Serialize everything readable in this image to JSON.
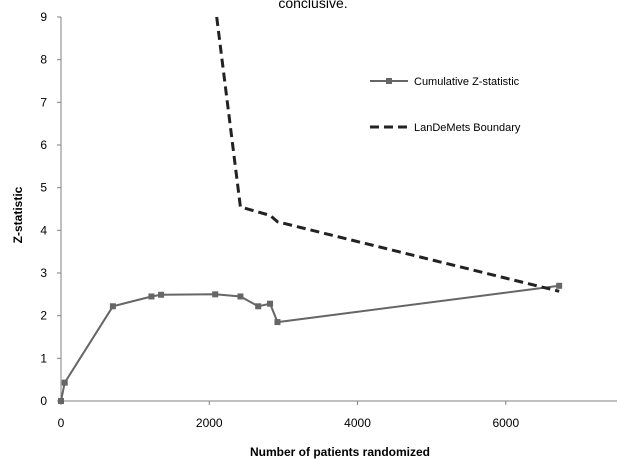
{
  "chart_data": {
    "type": "line",
    "title": "conclusive.",
    "xlabel": "Number of patients randomized",
    "ylabel": "Z-statistic",
    "xlim": [
      0,
      7500
    ],
    "ylim": [
      0,
      9
    ],
    "xticks": [
      "0",
      "2000",
      "4000",
      "6000"
    ],
    "xtick_values": [
      0,
      2000,
      4000,
      6000
    ],
    "yticks": [
      "0",
      "1",
      "2",
      "3",
      "4",
      "5",
      "6",
      "7",
      "8",
      "9"
    ],
    "ytick_values": [
      0,
      1,
      2,
      3,
      4,
      5,
      6,
      7,
      8,
      9
    ],
    "grid": false,
    "legend_position": "top-right",
    "series": [
      {
        "name": "Cumulative Z-statistic",
        "style": "solid-square-markers",
        "color": "#666666",
        "x": [
          0,
          50,
          700,
          1220,
          1350,
          2080,
          2420,
          2660,
          2820,
          2920,
          6720
        ],
        "y": [
          0,
          0.43,
          2.22,
          2.45,
          2.49,
          2.5,
          2.45,
          2.22,
          2.28,
          1.85,
          2.7
        ]
      },
      {
        "name": "LanDeMets Boundary",
        "style": "dashed",
        "color": "#222222",
        "x": [
          2100,
          2420,
          2820,
          2920,
          6720
        ],
        "y": [
          9.0,
          4.55,
          4.35,
          4.2,
          2.57
        ]
      }
    ]
  }
}
